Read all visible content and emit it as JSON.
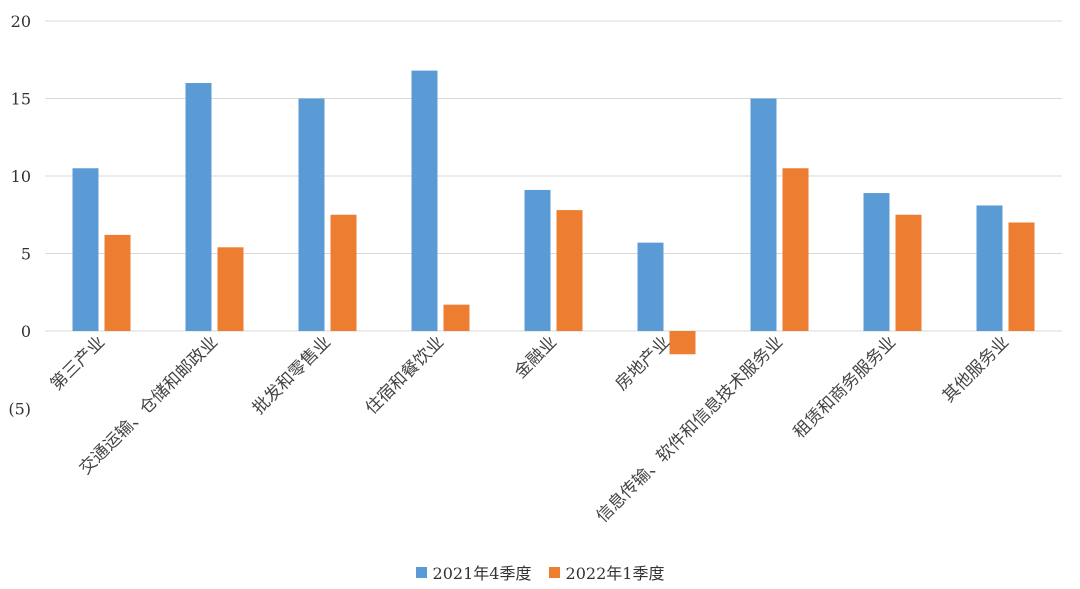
{
  "chart_data": {
    "type": "bar",
    "title": "",
    "xlabel": "",
    "ylabel": "",
    "ylim": [
      -5,
      20
    ],
    "yticks": [
      20,
      15,
      10,
      5,
      0,
      -5
    ],
    "ytick_labels": [
      "20",
      "15",
      "10",
      "5",
      "0",
      "(5)"
    ],
    "negative_tick_color": "#c00000",
    "grid": true,
    "legend_position": "bottom",
    "categories": [
      "第三产业",
      "交通运输、仓储和邮政业",
      "批发和零售业",
      "住宿和餐饮业",
      "金融业",
      "房地产业",
      "信息传输、软件和信息技术服务业",
      "租赁和商务服务业",
      "其他服务业"
    ],
    "series": [
      {
        "name": "2021年4季度",
        "color": "#5b9bd5",
        "values": [
          10.5,
          16.0,
          15.0,
          16.8,
          9.1,
          5.7,
          15.0,
          8.9,
          8.1
        ]
      },
      {
        "name": "2022年1季度",
        "color": "#ed7d31",
        "values": [
          6.2,
          5.4,
          7.5,
          1.7,
          7.8,
          -1.5,
          10.5,
          7.5,
          7.0
        ]
      }
    ]
  }
}
